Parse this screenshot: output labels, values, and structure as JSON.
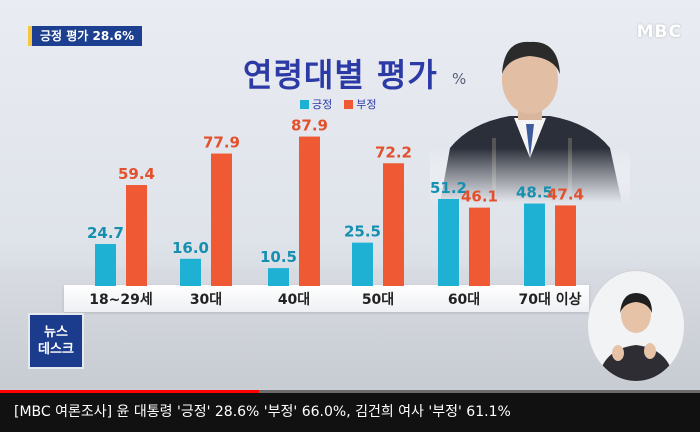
{
  "badge": "긍정 평가 28.6%",
  "logo": "MBC",
  "news_logo": {
    "line1": "뉴스",
    "line2": "데스크"
  },
  "ticker": "[MBC 여론조사] 윤 대통령 '긍정' 28.6% '부정' 66.0%, 김건희 여사 '부정' 61.1%",
  "video_progress": 0.37,
  "colors": {
    "positive": "#1fb1d4",
    "negative": "#ef5a34",
    "title": "#2c3aa6",
    "badge": "#1d3f8f"
  },
  "chart_data": {
    "type": "bar",
    "title": "연령대별 평가",
    "unit": "%",
    "categories": [
      "18~29세",
      "30대",
      "40대",
      "50대",
      "60대",
      "70대 이상"
    ],
    "series": [
      {
        "name": "긍정",
        "values": [
          24.7,
          16.0,
          10.5,
          25.5,
          51.2,
          48.5
        ]
      },
      {
        "name": "부정",
        "values": [
          59.4,
          77.9,
          87.9,
          72.2,
          46.1,
          47.4
        ]
      }
    ],
    "ylim": [
      0,
      100
    ],
    "legend": "top-center",
    "grid": false
  }
}
